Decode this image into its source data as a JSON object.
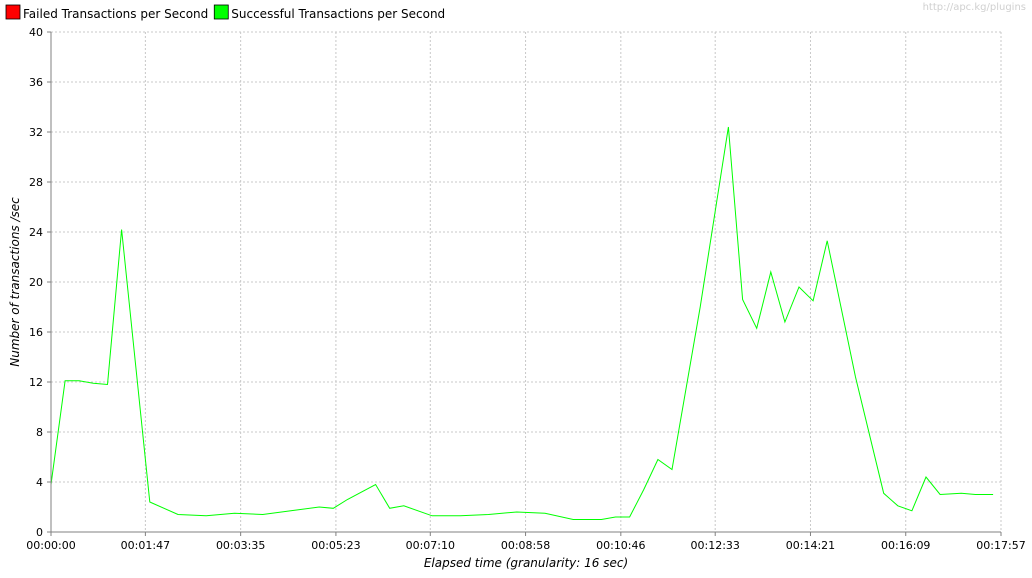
{
  "watermark": "http://apc.kg/plugins",
  "colors": {
    "failed": "#ff0000",
    "success": "#00ff00"
  },
  "chart_data": {
    "type": "line",
    "title": "",
    "xlabel": "Elapsed time (granularity: 16 sec)",
    "ylabel": "Number of transactions /sec",
    "ylim": [
      0,
      40
    ],
    "yticks": [
      "0",
      "4",
      "8",
      "12",
      "16",
      "20",
      "24",
      "28",
      "32",
      "36",
      "40"
    ],
    "xlim_seconds": [
      0,
      1077
    ],
    "xticks": [
      "00:00:00",
      "00:01:47",
      "00:03:35",
      "00:05:23",
      "00:07:10",
      "00:08:58",
      "00:10:46",
      "00:12:33",
      "00:14:21",
      "00:16:09",
      "00:17:57"
    ],
    "grid": true,
    "legend_position": "top-left",
    "series": [
      {
        "name": "Failed Transactions per Second",
        "color": "#ff0000",
        "x": [
          0,
          1068
        ],
        "y": [
          0,
          0
        ]
      },
      {
        "name": "Successful Transactions per Second",
        "color": "#00ff00",
        "x": [
          0,
          16,
          32,
          48,
          64,
          80,
          112,
          144,
          176,
          208,
          240,
          272,
          304,
          320,
          336,
          368,
          384,
          400,
          432,
          464,
          496,
          528,
          560,
          592,
          624,
          640,
          656,
          672,
          688,
          704,
          736,
          768,
          784,
          800,
          816,
          832,
          848,
          864,
          880,
          912,
          944,
          960,
          976,
          992,
          1008,
          1032,
          1048,
          1068
        ],
        "y": [
          3.8,
          12.1,
          12.1,
          11.9,
          11.8,
          24.2,
          2.4,
          1.4,
          1.3,
          1.5,
          1.4,
          1.7,
          2.0,
          1.9,
          2.6,
          3.8,
          1.9,
          2.1,
          1.3,
          1.3,
          1.4,
          1.6,
          1.5,
          1.0,
          1.0,
          1.2,
          1.2,
          3.4,
          5.8,
          5.0,
          18.0,
          32.4,
          18.6,
          16.3,
          20.8,
          16.8,
          19.6,
          18.5,
          23.3,
          12.4,
          3.1,
          2.1,
          1.7,
          4.4,
          3.0,
          3.1,
          3.0,
          3.0
        ]
      }
    ]
  }
}
